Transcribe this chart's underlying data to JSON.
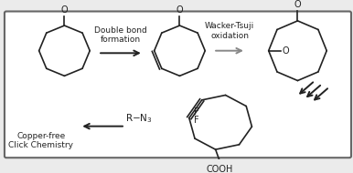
{
  "bg_color": "#ebebeb",
  "border_color": "#666666",
  "line_color": "#222222",
  "text_color": "#222222",
  "arrow1_label": "Double bond\nformation",
  "arrow2_label": "Wacker-Tsuji\noxidation",
  "arrow3_label": "Copper-free\nClick Chemistry",
  "figsize": [
    3.86,
    1.9
  ],
  "dpi": 100
}
